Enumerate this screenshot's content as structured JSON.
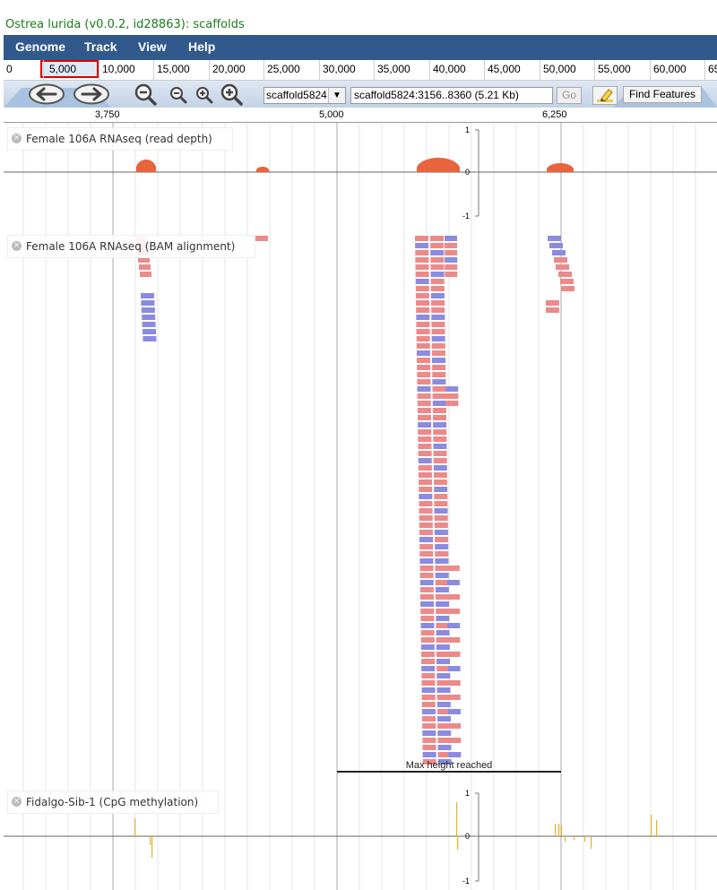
{
  "title": "Ostrea lurida (v0.0.2, id28863): scaffolds",
  "menu": [
    "Genome",
    "Track",
    "View",
    "Help"
  ],
  "overview": {
    "labels": [
      "0",
      "5,000",
      "10,000",
      "15,000",
      "20,000",
      "25,000",
      "30,000",
      "35,000",
      "40,000",
      "45,000",
      "50,000",
      "55,000",
      "60,000",
      "65"
    ]
  },
  "nav": {
    "refseq": "scaffold5824",
    "location": "scaffold5824:3156..8360 (5.21 Kb)",
    "go_label": "Go",
    "find_label": "Find Features"
  },
  "ruler": {
    "labels": [
      "3,750",
      "5,000",
      "6,250"
    ]
  },
  "tracks": [
    {
      "label": "Female 106A RNAseq (read depth)",
      "ticks": [
        "1",
        "0",
        "-1"
      ]
    },
    {
      "label": "Female 106A RNAseq (BAM alignment)",
      "max_height_text": "Max height reached"
    },
    {
      "label": "Fidalgo-Sib-1 (CpG methylation)",
      "ticks": [
        "1",
        "0",
        "-1"
      ]
    }
  ],
  "colors": {
    "coverage": "#e8643c",
    "read_forward": "#ec8a8a",
    "read_reverse": "#8b8be0",
    "methylation": "#e0b42a",
    "menubar": "#31598b"
  },
  "icons": {
    "pan_left": "arrow-left-icon",
    "pan_right": "arrow-right-icon",
    "zoom_out_large": "zoom-out-large-icon",
    "zoom_out_small": "zoom-out-small-icon",
    "zoom_in_small": "zoom-in-small-icon",
    "zoom_in_large": "zoom-in-large-icon",
    "highlight": "highlighter-icon",
    "close": "close-icon"
  }
}
